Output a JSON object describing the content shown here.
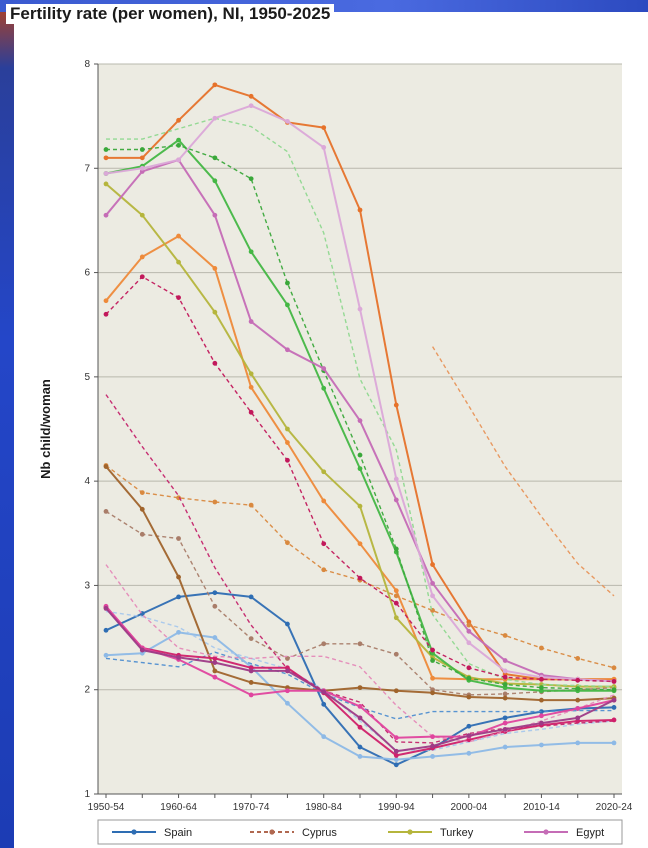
{
  "chart_data": {
    "type": "line",
    "title": "Fertility rate (per women), NI, 1950-2025",
    "xlabel": "",
    "ylabel": "Nb child/woman",
    "ylim": [
      1,
      8
    ],
    "yticks": [
      "1",
      "2",
      "3",
      "4",
      "5",
      "6",
      "7",
      "8"
    ],
    "categories": [
      "1950-54",
      "1955-59",
      "1960-64",
      "1965-69",
      "1970-74",
      "1975-79",
      "1980-84",
      "1985-89",
      "1990-94",
      "1995-99",
      "2000-04",
      "2005-09",
      "2010-14",
      "2015-19",
      "2020-24"
    ],
    "xtick_labels": [
      "1950-54",
      "1960-64",
      "1970-74",
      "1980-84",
      "1990-94",
      "2000-04",
      "2010-14",
      "2020-24"
    ],
    "grid": true,
    "legend_position": "bottom",
    "legend": [
      {
        "label": "Spain",
        "color": "#2e6db3",
        "dash": "solid"
      },
      {
        "label": "Cyprus",
        "color": "#b06850",
        "dash": "dashed"
      },
      {
        "label": "Turkey",
        "color": "#b5b53c",
        "dash": "solid"
      },
      {
        "label": "Egypt",
        "color": "#c56cb6",
        "dash": "solid"
      }
    ],
    "series": [
      {
        "color": "#2e6db3",
        "dash": "solid",
        "values": [
          2.57,
          2.73,
          2.89,
          2.93,
          2.89,
          2.63,
          1.86,
          1.45,
          1.28,
          1.44,
          1.65,
          1.73,
          1.79,
          1.82,
          1.83
        ]
      },
      {
        "color": "#4f8ed0",
        "dash": "dashed",
        "values": [
          2.3,
          2.26,
          2.22,
          2.36,
          2.25,
          2.15,
          1.96,
          1.83,
          1.72,
          1.79,
          1.79,
          1.79,
          1.79,
          1.8,
          1.8
        ]
      },
      {
        "color": "#8db9e6",
        "dash": "solid",
        "values": [
          2.33,
          2.35,
          2.55,
          2.5,
          2.22,
          1.87,
          1.55,
          1.36,
          1.33,
          1.36,
          1.39,
          1.45,
          1.47,
          1.49,
          1.49
        ]
      },
      {
        "color": "#a8c8ec",
        "dash": "dashed",
        "values": [
          2.75,
          2.7,
          2.6,
          2.4,
          2.3,
          2.2,
          2.0,
          1.7,
          1.42,
          1.42,
          1.5,
          1.58,
          1.62,
          1.67,
          1.7
        ]
      },
      {
        "color": "#e6722a",
        "dash": "solid",
        "values": [
          7.1,
          7.1,
          7.46,
          7.8,
          7.69,
          7.44,
          7.39,
          6.6,
          4.73,
          3.2,
          2.65,
          2.15,
          2.1,
          2.1,
          2.1
        ]
      },
      {
        "color": "#ee8a3a",
        "dash": "solid",
        "values": [
          5.73,
          6.15,
          6.35,
          6.04,
          4.9,
          4.37,
          3.81,
          3.4,
          2.95,
          2.11,
          2.1,
          2.1,
          2.1,
          2.1,
          2.1
        ]
      },
      {
        "color": "#d9893f",
        "dash": "dashed",
        "values": [
          4.15,
          3.89,
          3.84,
          3.8,
          3.77,
          3.41,
          3.15,
          3.05,
          2.9,
          2.76,
          2.62,
          2.52,
          2.4,
          2.3,
          2.21
        ]
      },
      {
        "color": "#e8955a",
        "dash": "dashed",
        "values": [
          null,
          null,
          null,
          null,
          null,
          null,
          null,
          null,
          null,
          5.29,
          4.72,
          4.14,
          3.66,
          3.21,
          2.9
        ]
      },
      {
        "color": "#a97d69",
        "dash": "dashed",
        "values": [
          3.71,
          3.49,
          3.45,
          2.8,
          2.49,
          2.3,
          2.44,
          2.44,
          2.34,
          2.0,
          1.95,
          1.96,
          1.98,
          2.0,
          2.02
        ]
      },
      {
        "color": "#a0642c",
        "dash": "solid",
        "values": [
          4.14,
          3.73,
          3.08,
          2.18,
          2.07,
          2.02,
          1.99,
          2.02,
          1.99,
          1.97,
          1.93,
          1.92,
          1.9,
          1.9,
          1.92
        ]
      },
      {
        "color": "#b5b53c",
        "dash": "solid",
        "values": [
          6.85,
          6.55,
          6.1,
          5.62,
          5.03,
          4.5,
          4.09,
          3.76,
          2.69,
          2.31,
          2.12,
          2.06,
          2.05,
          2.03,
          2.03
        ]
      },
      {
        "color": "#44b744",
        "dash": "solid",
        "values": [
          6.95,
          7.02,
          7.27,
          6.88,
          6.2,
          5.69,
          4.89,
          4.12,
          3.32,
          2.35,
          2.09,
          2.02,
          1.99,
          1.99,
          1.99
        ]
      },
      {
        "color": "#3aa83a",
        "dash": "dashed",
        "values": [
          7.18,
          7.18,
          7.22,
          7.1,
          6.9,
          5.9,
          5.06,
          4.25,
          3.35,
          2.28,
          2.11,
          2.05,
          2.02,
          2.01,
          2.0
        ]
      },
      {
        "color": "#8fd88f",
        "dash": "dashed",
        "values": [
          7.28,
          7.28,
          7.38,
          7.48,
          7.4,
          7.16,
          6.38,
          4.98,
          4.3,
          2.72,
          2.25,
          2.1,
          2.05,
          2.04,
          2.03
        ]
      },
      {
        "color": "#c56cb6",
        "dash": "solid",
        "values": [
          6.55,
          6.97,
          7.08,
          6.55,
          5.53,
          5.26,
          5.08,
          4.58,
          3.82,
          3.02,
          2.56,
          2.28,
          2.14,
          2.1,
          2.08
        ]
      },
      {
        "color": "#dba8d8",
        "dash": "solid",
        "values": [
          6.95,
          7.0,
          7.08,
          7.48,
          7.6,
          7.45,
          7.2,
          5.65,
          4.02,
          2.9,
          2.45,
          2.18,
          2.12,
          2.1,
          2.08
        ]
      },
      {
        "color": "#c2185b",
        "dash": "dashed",
        "values": [
          5.6,
          5.96,
          5.76,
          5.13,
          4.66,
          4.2,
          3.4,
          3.07,
          2.83,
          2.38,
          2.21,
          2.12,
          2.1,
          2.09,
          2.08
        ]
      },
      {
        "color": "#c4246b",
        "dash": "dashed",
        "values": [
          4.83,
          4.33,
          3.86,
          3.17,
          2.62,
          2.2,
          1.99,
          1.88,
          1.5,
          1.49,
          1.58,
          1.63,
          1.65,
          1.68,
          1.7
        ]
      },
      {
        "color": "#d0206a",
        "dash": "solid",
        "values": [
          2.79,
          2.4,
          2.33,
          2.3,
          2.21,
          2.21,
          1.97,
          1.64,
          1.37,
          1.44,
          1.52,
          1.6,
          1.66,
          1.7,
          1.71
        ]
      },
      {
        "color": "#e58ab8",
        "dash": "dashed",
        "values": [
          3.2,
          2.72,
          2.4,
          2.32,
          2.3,
          2.32,
          2.32,
          2.22,
          1.85,
          1.55,
          1.5,
          1.6,
          1.7,
          1.82,
          1.95
        ]
      },
      {
        "color": "#e0449e",
        "dash": "solid",
        "values": [
          2.8,
          2.4,
          2.29,
          2.12,
          1.95,
          1.99,
          1.99,
          1.84,
          1.54,
          1.55,
          1.55,
          1.68,
          1.75,
          1.82,
          1.9
        ]
      },
      {
        "color": "#9e3a86",
        "dash": "solid",
        "values": [
          2.78,
          2.38,
          2.31,
          2.26,
          2.18,
          2.18,
          1.98,
          1.73,
          1.41,
          1.46,
          1.56,
          1.62,
          1.68,
          1.73,
          1.9
        ]
      }
    ]
  }
}
